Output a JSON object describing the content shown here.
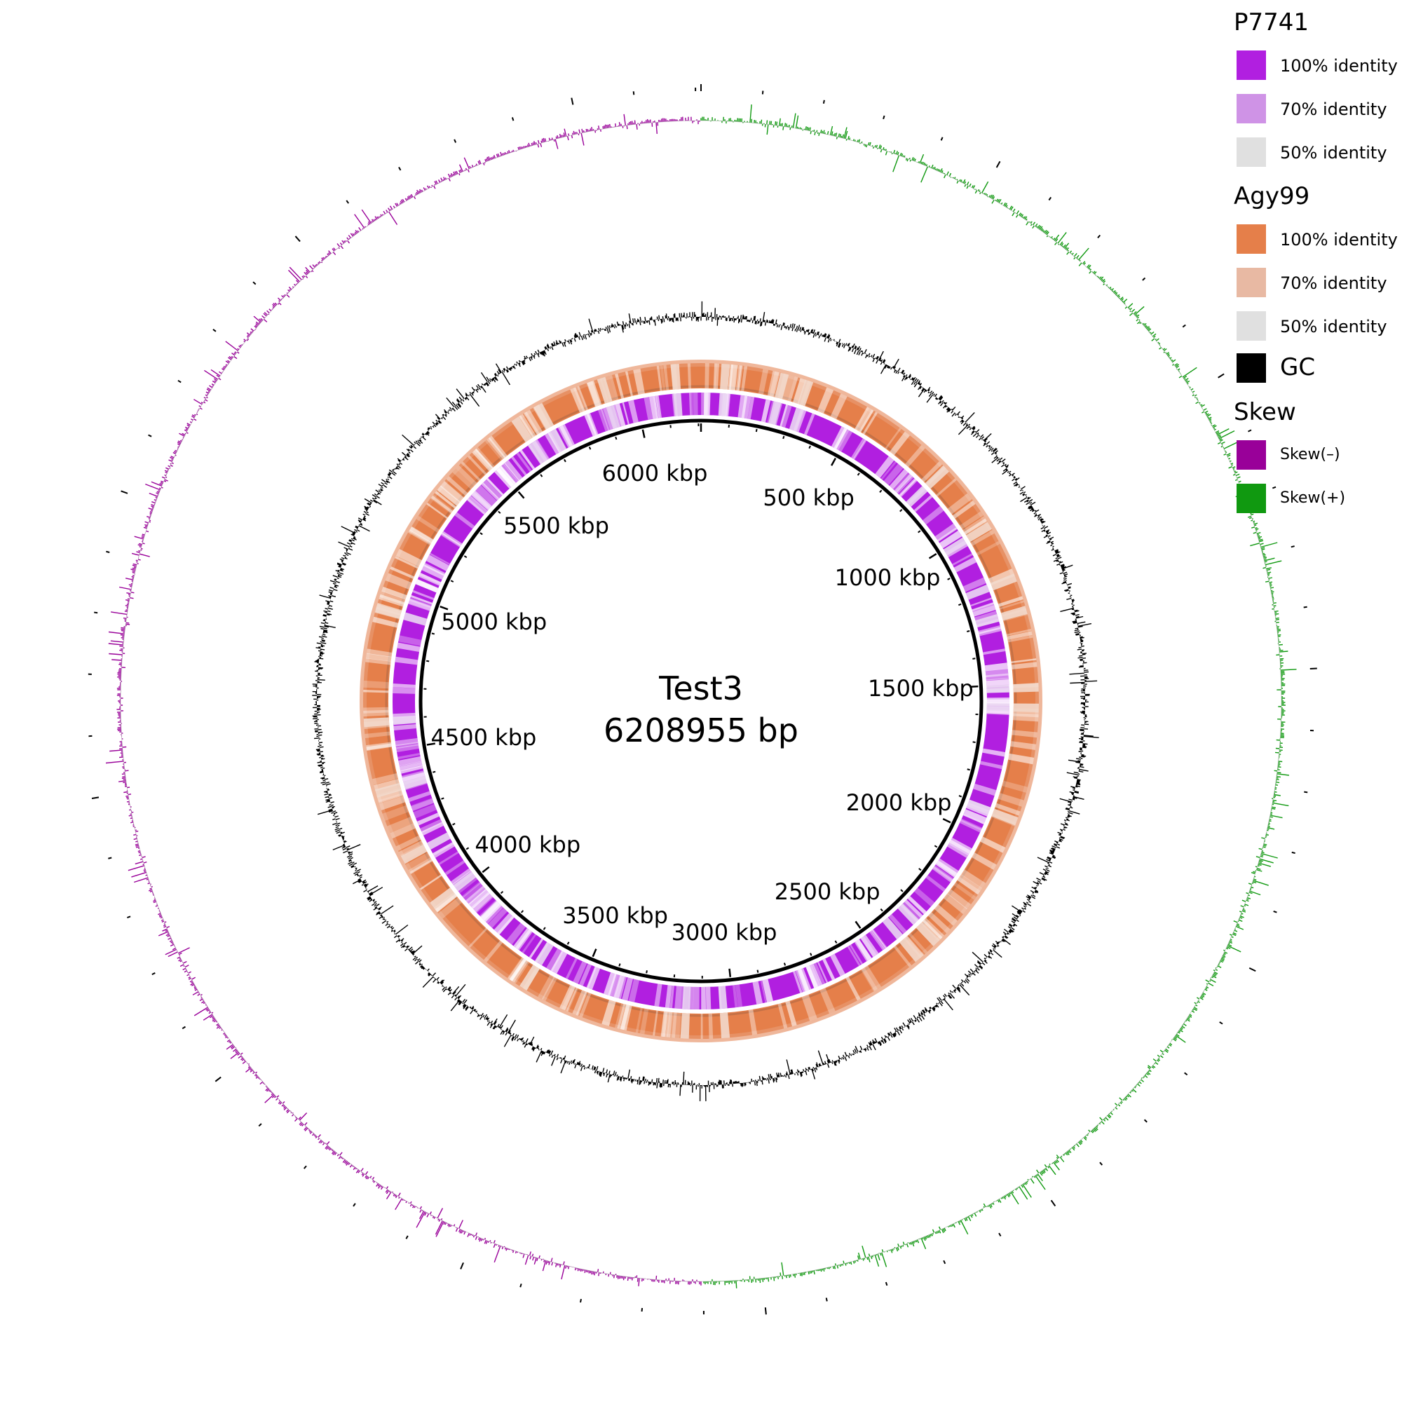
{
  "diagram": {
    "sequence_name": "Test3",
    "sequence_length_label": "6208955 bp",
    "sequence_length_bp": 6208955,
    "tick_labels": [
      {
        "text": "500 kbp",
        "position_bp": 500000
      },
      {
        "text": "1000 kbp",
        "position_bp": 1000000
      },
      {
        "text": "1500 kbp",
        "position_bp": 1500000
      },
      {
        "text": "2000 kbp",
        "position_bp": 2000000
      },
      {
        "text": "2500 kbp",
        "position_bp": 2500000
      },
      {
        "text": "3000 kbp",
        "position_bp": 3000000
      },
      {
        "text": "3500 kbp",
        "position_bp": 3500000
      },
      {
        "text": "4000 kbp",
        "position_bp": 4000000
      },
      {
        "text": "4500 kbp",
        "position_bp": 4500000
      },
      {
        "text": "5000 kbp",
        "position_bp": 5000000
      },
      {
        "text": "5500 kbp",
        "position_bp": 5500000
      },
      {
        "text": "6000 kbp",
        "position_bp": 6000000
      }
    ],
    "rings": [
      {
        "name": "P7741",
        "color": "#b11fe0"
      },
      {
        "name": "Agy99",
        "color": "#e57f4a"
      },
      {
        "name": "GC",
        "color": "#000000"
      },
      {
        "name": "Skew",
        "colors": {
          "negative": "#990099",
          "positive": "#109910"
        }
      }
    ]
  },
  "legend": {
    "groups": [
      {
        "title": "P7741",
        "items": [
          {
            "label": "100% identity",
            "color": "#b11fe0"
          },
          {
            "label": "70% identity",
            "color": "#cf93e6"
          },
          {
            "label": "50% identity",
            "color": "#e0e0e0"
          }
        ]
      },
      {
        "title": "Agy99",
        "items": [
          {
            "label": "100% identity",
            "color": "#e57f4a"
          },
          {
            "label": "70% identity",
            "color": "#e8b9a3"
          },
          {
            "label": "50% identity",
            "color": "#e0e0e0"
          }
        ]
      }
    ],
    "gc": {
      "label": "GC",
      "color": "#000000"
    },
    "skew": {
      "title": "Skew",
      "items": [
        {
          "label": "Skew(–)",
          "color": "#990099"
        },
        {
          "label": "Skew(+)",
          "color": "#109910"
        }
      ]
    }
  }
}
